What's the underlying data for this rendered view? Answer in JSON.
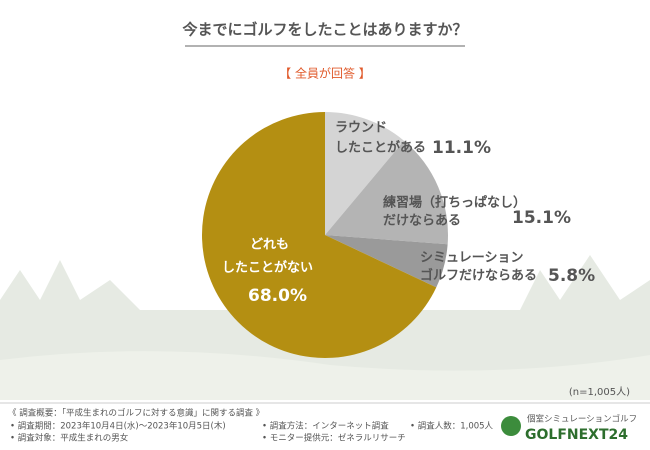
{
  "chart_data": {
    "type": "pie",
    "title": "今までにゴルフをしたことはありますか？",
    "subtitle": "【 全員が回答 】",
    "note": "(n=1,005人)",
    "categories": [
      [
        "ラウンド",
        "したことがある"
      ],
      [
        "練習場（打ちっぱなし）",
        "だけならある"
      ],
      [
        "シミュレーション",
        "ゴルフだけならある"
      ],
      [
        "どれも",
        "したことがない"
      ]
    ],
    "values": [
      11.1,
      15.1,
      5.8,
      68.0
    ],
    "value_labels": [
      "11.1%",
      "15.1%",
      "5.8%",
      "68.0%"
    ],
    "colors": [
      "#d4d4d4",
      "#b4b4b4",
      "#9a9a9a",
      "#b48f12"
    ]
  },
  "footer": {
    "overview": "《 調査概要：「平成生まれのゴルフに対する意識」に関する調査 》",
    "items": [
      "• 調査期間：2023年10月4日(水)～2023年10月5日(木)",
      "• 調査対象：平成生まれの男女",
      "• 調査方法：インターネット調査",
      "• モニター提供元：ゼネラルリサーチ",
      "• 調査人数：1,005人"
    ],
    "logo_sub": "個室シミュレーションゴルフ",
    "logo": "GOLFNEXT24"
  }
}
